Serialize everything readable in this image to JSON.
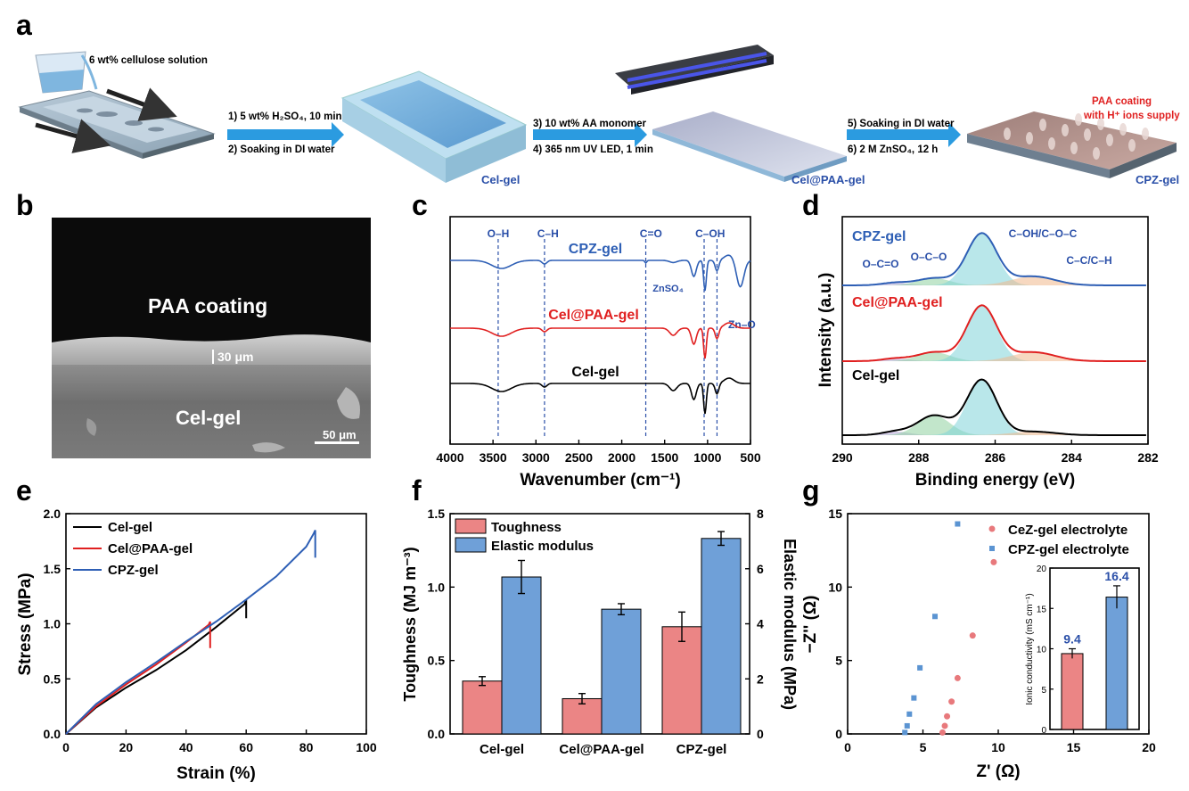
{
  "panels": {
    "a": "a",
    "b": "b",
    "c": "c",
    "d": "d",
    "e": "e",
    "f": "f",
    "g": "g"
  },
  "panel_a": {
    "solution": "6 wt% cellulose solution",
    "step1": "1) 5 wt% H₂SO₄, 10 min",
    "step2": "2) Soaking in DI water",
    "step3": "3) 10 wt% AA monomer",
    "step4": "4) 365 nm UV LED, 1 min",
    "step5": "5) Soaking in DI water",
    "step6": "6) 2 M ZnSO₄, 12 h",
    "celgel": "Cel-gel",
    "celpaa": "Cel@PAA-gel",
    "cpz": "CPZ-gel",
    "coating1": "PAA coating",
    "coating2": "with H⁺ ions supply"
  },
  "panel_b": {
    "coating": "PAA coating",
    "thickness": "30 μm",
    "gel": "Cel-gel",
    "scale": "50 μm"
  },
  "chart_data": [
    {
      "panel": "c",
      "type": "line",
      "xlabel": "Wavenumber (cm⁻¹)",
      "xlim": [
        4000,
        500
      ],
      "xticks": [
        "4000",
        "3500",
        "3000",
        "2500",
        "2000",
        "1500",
        "1000",
        "500"
      ],
      "series": [
        {
          "name": "CPZ-gel",
          "color": "#2e5fb5"
        },
        {
          "name": "Cel@PAA-gel",
          "color": "#e02020"
        },
        {
          "name": "Cel-gel",
          "color": "#000000"
        }
      ],
      "annotations": [
        "O–H",
        "C–H",
        "C=O",
        "C–OH",
        "ZnSO₄",
        "Zn–O"
      ],
      "marker_lines_x": [
        3440,
        2900,
        1720,
        1040,
        890
      ]
    },
    {
      "panel": "d",
      "type": "line",
      "xlabel": "Binding energy (eV)",
      "ylabel": "Intensity (a.u.)",
      "xlim": [
        290,
        282
      ],
      "xticks": [
        "290",
        "288",
        "286",
        "284",
        "282"
      ],
      "series": [
        {
          "name": "CPZ-gel",
          "color": "#2e5fb5"
        },
        {
          "name": "Cel@PAA-gel",
          "color": "#e02020"
        },
        {
          "name": "Cel-gel",
          "color": "#000000"
        }
      ],
      "peaks": [
        "O–C=O",
        "O–C–O",
        "C–OH/C–O–C",
        "C–C/C–H"
      ]
    },
    {
      "panel": "e",
      "type": "line",
      "xlabel": "Strain (%)",
      "ylabel": "Stress (MPa)",
      "xlim": [
        0,
        100
      ],
      "ylim": [
        0,
        2.0
      ],
      "xticks": [
        "0",
        "20",
        "40",
        "60",
        "80",
        "100"
      ],
      "yticks": [
        "0.0",
        "0.5",
        "1.0",
        "1.5",
        "2.0"
      ],
      "series": [
        {
          "name": "Cel-gel",
          "color": "#000000",
          "x": [
            0,
            10,
            20,
            30,
            40,
            50,
            59.5,
            60,
            60
          ],
          "y": [
            0,
            0.24,
            0.42,
            0.58,
            0.76,
            0.97,
            1.18,
            1.22,
            1.05
          ]
        },
        {
          "name": "Cel@PAA-gel",
          "color": "#e02020",
          "x": [
            0,
            10,
            20,
            30,
            40,
            47.5,
            48,
            48
          ],
          "y": [
            0,
            0.25,
            0.45,
            0.63,
            0.83,
            0.99,
            1.02,
            0.78
          ]
        },
        {
          "name": "CPZ-gel",
          "color": "#2e5fb5",
          "x": [
            0,
            10,
            20,
            30,
            40,
            50,
            60,
            70,
            80,
            82.5,
            83,
            83
          ],
          "y": [
            0,
            0.27,
            0.47,
            0.65,
            0.84,
            1.02,
            1.22,
            1.43,
            1.7,
            1.82,
            1.85,
            1.6
          ]
        }
      ]
    },
    {
      "panel": "f",
      "type": "bar",
      "categories": [
        "Cel-gel",
        "Cel@PAA-gel",
        "CPZ-gel"
      ],
      "ylabel": "Toughness (MJ m⁻³)",
      "y2label": "Elastic modulus (MPa)",
      "ylim": [
        0,
        1.5
      ],
      "y2lim": [
        0,
        8
      ],
      "yticks": [
        "0.0",
        "0.5",
        "1.0",
        "1.5"
      ],
      "y2ticks": [
        "0",
        "2",
        "4",
        "6",
        "8"
      ],
      "series": [
        {
          "name": "Toughness",
          "color": "#eb8585",
          "values": [
            0.36,
            0.24,
            0.73
          ],
          "errors": [
            0.03,
            0.035,
            0.1
          ]
        },
        {
          "name": "Elastic modulus",
          "color": "#6fa0d8",
          "values": [
            5.7,
            4.53,
            7.1
          ],
          "errors": [
            0.6,
            0.2,
            0.25
          ]
        }
      ]
    },
    {
      "panel": "g",
      "type": "scatter",
      "xlabel": "Z' (Ω)",
      "ylabel": "−Z'' (Ω)",
      "xlim": [
        0,
        20
      ],
      "ylim": [
        0,
        15
      ],
      "xticks": [
        "0",
        "5",
        "10",
        "15",
        "20"
      ],
      "yticks": [
        "0",
        "5",
        "10",
        "15"
      ],
      "series": [
        {
          "name": "CeZ-gel electrolyte",
          "color": "#e8797c",
          "x": [
            6.3,
            6.45,
            6.6,
            6.9,
            7.3,
            8.3,
            9.7
          ],
          "y": [
            0.1,
            0.55,
            1.2,
            2.2,
            3.8,
            6.7,
            11.7
          ]
        },
        {
          "name": "CPZ-gel electrolyte",
          "color": "#5b94d2",
          "x": [
            3.8,
            3.95,
            4.1,
            4.4,
            4.8,
            5.8,
            7.3
          ],
          "y": [
            0.1,
            0.55,
            1.35,
            2.45,
            4.5,
            8.0,
            14.3
          ]
        }
      ]
    },
    {
      "panel": "g-inset",
      "type": "bar",
      "ylabel": "Ionic conductivity (mS cm⁻¹)",
      "ylim": [
        0,
        20
      ],
      "yticks": [
        "0",
        "5",
        "10",
        "15",
        "20"
      ],
      "values": [
        9.4,
        16.4
      ],
      "value_labels": [
        "9.4",
        "16.4"
      ],
      "errors": [
        0.6,
        1.4
      ],
      "colors": [
        "#eb8585",
        "#6fa0d8"
      ]
    }
  ]
}
